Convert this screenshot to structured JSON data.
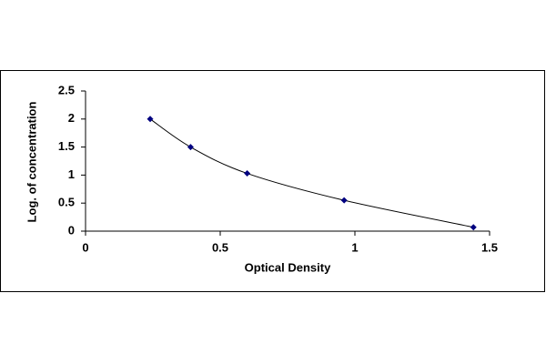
{
  "chart_data": {
    "type": "scatter",
    "smooth": true,
    "x_label": "Optical Density",
    "y_label": "Log. of concentration",
    "x": [
      0.24,
      0.39,
      0.6,
      0.96,
      1.44
    ],
    "values": [
      2.0,
      1.5,
      1.03,
      0.55,
      0.07
    ],
    "color": "#000080",
    "line_color": "#000000",
    "xlim": [
      0,
      1.5
    ],
    "xticks": [
      0,
      0.5,
      1,
      1.5
    ],
    "ylim": [
      0,
      2.5
    ],
    "yticks": [
      0,
      0.5,
      1,
      1.5,
      2,
      2.5
    ],
    "grid": false
  }
}
